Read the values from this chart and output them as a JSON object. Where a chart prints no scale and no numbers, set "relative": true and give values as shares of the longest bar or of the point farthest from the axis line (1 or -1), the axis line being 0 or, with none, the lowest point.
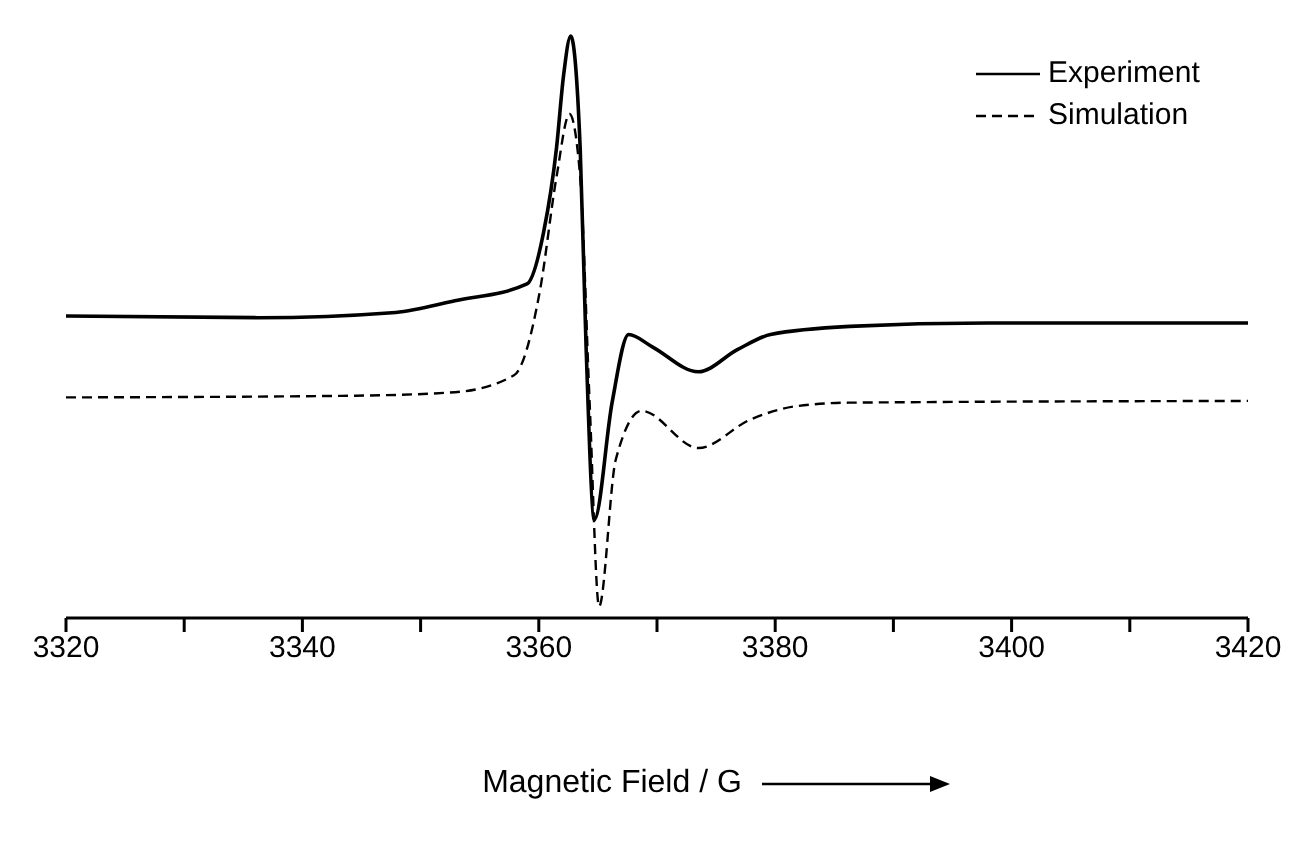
{
  "chart_data": {
    "type": "line",
    "relative": true,
    "xlabel": "Magnetic Field / G",
    "xlim": [
      3320,
      3420
    ],
    "xticks": [
      3320,
      {
        "value": 3330,
        "label": null
      },
      3340,
      {
        "value": 3350,
        "label": null
      },
      3360,
      {
        "value": 3370,
        "label": null
      },
      3380,
      {
        "value": 3390,
        "label": null
      },
      3400,
      {
        "value": 3410,
        "label": null
      },
      3420
    ],
    "legend": "top right",
    "marker": "none",
    "series": [
      {
        "name": "Experiment",
        "color": "#000000",
        "line_style": "solid",
        "x": [
          3320,
          3336.2,
          3347.9,
          3352.9,
          3359.0,
          3360.4,
          3361.5,
          3362.1,
          3362.7,
          3363.5,
          3364.0,
          3364.7,
          3366.2,
          3367.6,
          3369.6,
          3373.5,
          3376.8,
          3379.6,
          3386.3,
          3398.0,
          3420
        ],
        "values": [
          0.519,
          0.516,
          0.525,
          0.545,
          0.574,
          0.662,
          0.808,
          0.933,
          1,
          0.808,
          0.466,
          0.169,
          0.37,
          0.487,
          0.466,
          0.423,
          0.461,
          0.487,
          0.501,
          0.507,
          0.507
        ]
      },
      {
        "name": "Simulation",
        "color": "#000000",
        "line_style": "dashed",
        "x": [
          3320,
          3344.5,
          3352.9,
          3357.9,
          3360.1,
          3361.5,
          3362.6,
          3363.5,
          3364.3,
          3365.1,
          3366.5,
          3368.7,
          3373.5,
          3377.9,
          3381.8,
          3386.3,
          3420
        ],
        "values": [
          0.379,
          0.382,
          0.388,
          0.417,
          0.563,
          0.758,
          0.866,
          0.758,
          0.37,
          0.02,
          0.271,
          0.356,
          0.292,
          0.341,
          0.364,
          0.37,
          0.373
        ]
      }
    ]
  }
}
